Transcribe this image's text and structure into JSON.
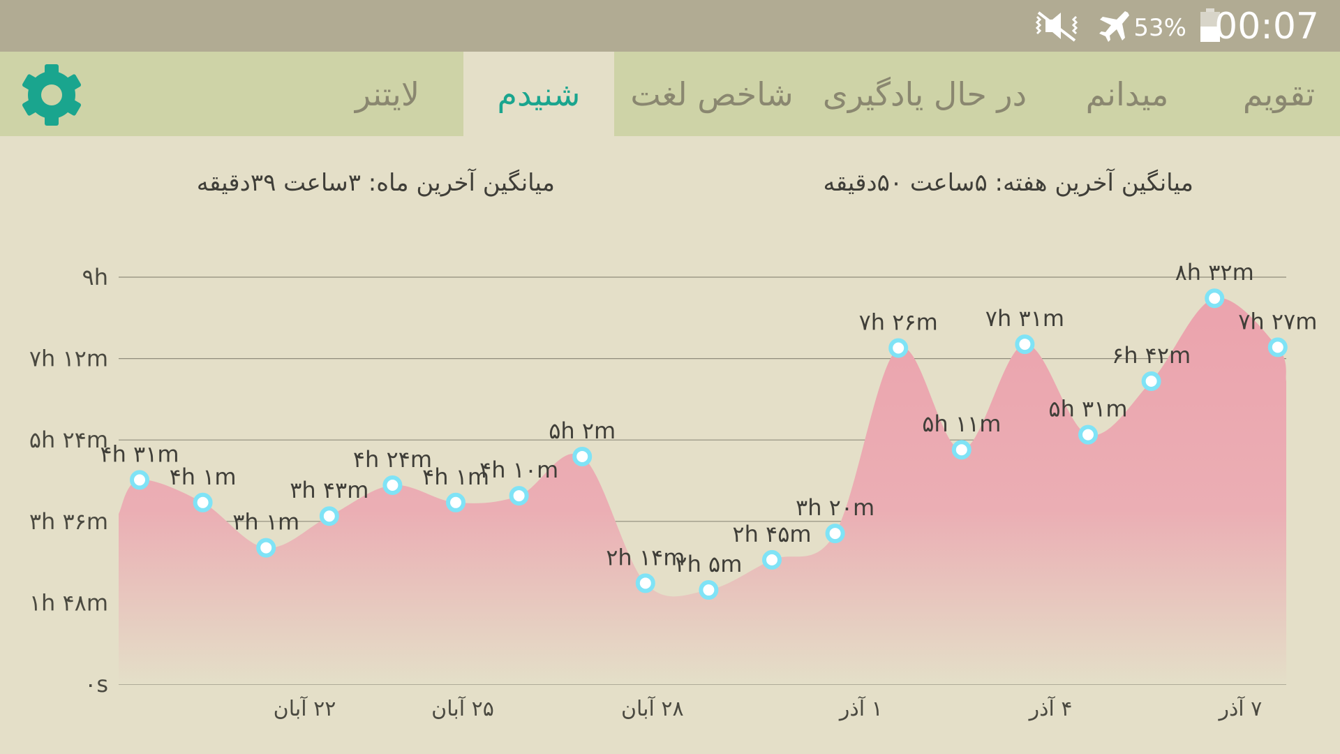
{
  "status_bar": {
    "battery_percent": "53%",
    "time": "00:07",
    "icons": [
      "mute-vibrate-icon",
      "airplane-mode-icon",
      "battery-icon"
    ]
  },
  "tabs": [
    {
      "label": "تقویم",
      "active": false
    },
    {
      "label": "میدانم",
      "active": false
    },
    {
      "label": "در حال یادگیری",
      "active": false
    },
    {
      "label": "شاخص لغت",
      "active": false
    },
    {
      "label": "شنیدم",
      "active": true
    },
    {
      "label": "لایتنر",
      "active": false
    }
  ],
  "settings_icon": "gear-icon",
  "averages": {
    "week": "میانگین آخرین هفته: ۵ساعت  ۵۰دقیقه",
    "month": "میانگین آخرین ماه: ۳ساعت  ۳۹دقیقه"
  },
  "colors": {
    "accent": "#1aa58e",
    "area_fill": "#eba3ad",
    "point_ring": "#7fe3f6"
  },
  "chart_data": {
    "type": "area",
    "y_tick_labels": [
      "۰s",
      "۱h ۴۸m",
      "۳h ۳۶m",
      "۵h ۲۴m",
      "۷h ۱۲m",
      "۹h"
    ],
    "y_tick_values": [
      0,
      108,
      216,
      324,
      432,
      540
    ],
    "ylim": [
      0,
      540
    ],
    "x_tick_labels": [
      {
        "label": "۲۲ آبان",
        "index": 2.5
      },
      {
        "label": "۲۵ آبان",
        "index": 5
      },
      {
        "label": "۲۸ آبان",
        "index": 8
      },
      {
        "label": "۱ آذر",
        "index": 11.3
      },
      {
        "label": "۴ آذر",
        "index": 14.3
      },
      {
        "label": "۷ آذر",
        "index": 17.3
      }
    ],
    "series": [
      {
        "values": [
          271,
          241,
          181,
          223,
          264,
          241,
          250,
          302,
          134,
          125,
          165,
          200,
          446,
          311,
          451,
          331,
          402,
          512,
          447
        ],
        "labels": [
          "۴h ۳۱m",
          "۴h ۱m",
          "۳h ۱m",
          "۳h ۴۳m",
          "۴h ۲۴m",
          "۴h ۱m",
          "۴h ۱۰m",
          "۵h ۲m",
          "۲h ۱۴m",
          "۲h ۵m",
          "۲h ۴۵m",
          "۳h ۲۰m",
          "۷h ۲۶m",
          "۵h ۱۱m",
          "۷h ۳۱m",
          "۵h ۳۱m",
          "۶h ۴۲m",
          "۸h ۳۲m",
          "۷h ۲۷m"
        ]
      }
    ],
    "grid": true
  }
}
